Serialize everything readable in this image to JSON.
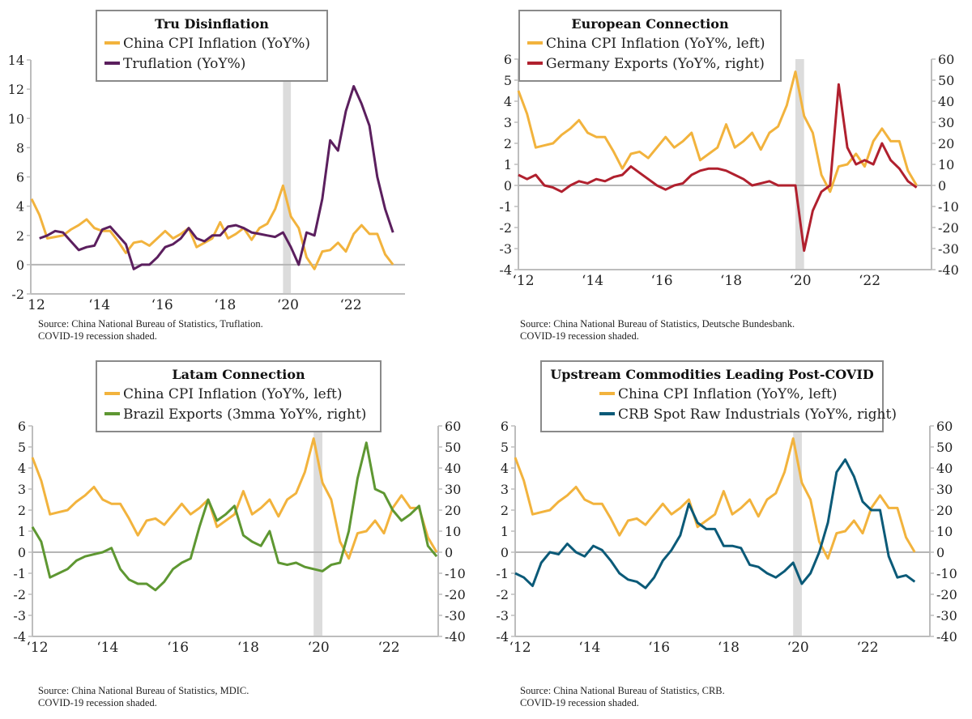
{
  "chart_data": [
    {
      "type": "line",
      "title": "Tru Disinflation",
      "x_tick_labels": [
        "12",
        "‘14",
        "‘16",
        "‘18",
        "‘20",
        "‘22"
      ],
      "x_tick_years": [
        2012,
        2014,
        2016,
        2018,
        2020,
        2022
      ],
      "left_axis": {
        "range": [
          -2,
          14
        ],
        "ticks": [
          -2,
          0,
          2,
          4,
          6,
          8,
          10,
          12,
          14
        ]
      },
      "shaded_region": [
        "2020-01",
        "2020-04"
      ],
      "source": "Source: China National Bureau of Statistics, Truflation.",
      "note": "COVID-19 recession shaded.",
      "x": [
        "2012-01",
        "2012-04",
        "2012-07",
        "2012-10",
        "2013-01",
        "2013-04",
        "2013-07",
        "2013-10",
        "2014-01",
        "2014-04",
        "2014-07",
        "2014-10",
        "2015-01",
        "2015-04",
        "2015-07",
        "2015-10",
        "2016-01",
        "2016-04",
        "2016-07",
        "2016-10",
        "2017-01",
        "2017-04",
        "2017-07",
        "2017-10",
        "2018-01",
        "2018-04",
        "2018-07",
        "2018-10",
        "2019-01",
        "2019-04",
        "2019-07",
        "2019-10",
        "2020-01",
        "2020-04",
        "2020-07",
        "2020-10",
        "2021-01",
        "2021-04",
        "2021-07",
        "2021-10",
        "2022-01",
        "2022-04",
        "2022-07",
        "2022-10",
        "2023-01",
        "2023-04",
        "2023-07"
      ],
      "series": [
        {
          "name": "China CPI Inflation (YoY%)",
          "axis": "left",
          "color": "#F2B33D",
          "values": [
            4.5,
            3.4,
            1.8,
            1.9,
            2.0,
            2.4,
            2.7,
            3.1,
            2.5,
            2.3,
            2.3,
            1.6,
            0.8,
            1.5,
            1.6,
            1.3,
            1.8,
            2.3,
            1.8,
            2.1,
            2.5,
            1.2,
            1.5,
            1.8,
            2.9,
            1.8,
            2.1,
            2.5,
            1.7,
            2.5,
            2.8,
            3.8,
            5.4,
            3.3,
            2.5,
            0.5,
            -0.3,
            0.9,
            1.0,
            1.5,
            0.9,
            2.1,
            2.7,
            2.1,
            2.1,
            0.7,
            0.0
          ]
        },
        {
          "name": "Truflation (YoY%)",
          "axis": "left",
          "color": "#5B1F5E",
          "values": [
            null,
            1.8,
            2.0,
            2.3,
            2.2,
            1.6,
            1.0,
            1.2,
            1.3,
            2.4,
            2.6,
            2.0,
            1.4,
            -0.3,
            0.0,
            0.0,
            0.5,
            1.2,
            1.4,
            1.8,
            2.5,
            1.8,
            1.6,
            2.0,
            2.0,
            2.6,
            2.7,
            2.5,
            2.2,
            2.1,
            2.0,
            1.9,
            2.2,
            1.2,
            0.0,
            2.2,
            2.0,
            4.5,
            8.5,
            7.8,
            10.5,
            12.2,
            11.0,
            9.5,
            6.0,
            3.8,
            2.2
          ]
        }
      ]
    },
    {
      "type": "line",
      "title": "European Connection",
      "x_tick_labels": [
        "‘12",
        "‘14",
        "‘16",
        "‘18",
        "‘20",
        "‘22"
      ],
      "x_tick_years": [
        2012,
        2014,
        2016,
        2018,
        2020,
        2022
      ],
      "left_axis": {
        "range": [
          -4,
          6
        ],
        "ticks": [
          -4,
          -3,
          -2,
          -1,
          0,
          1,
          2,
          3,
          4,
          5,
          6
        ]
      },
      "right_axis": {
        "range": [
          -40,
          60
        ],
        "ticks": [
          -40,
          -30,
          -20,
          -10,
          0,
          10,
          20,
          30,
          40,
          50,
          60
        ]
      },
      "shaded_region": [
        "2020-01",
        "2020-04"
      ],
      "source": "Source: China National Bureau of Statistics, Deutsche Bundesbank.",
      "note": "COVID-19 recession shaded.",
      "x": [
        "2012-01",
        "2012-04",
        "2012-07",
        "2012-10",
        "2013-01",
        "2013-04",
        "2013-07",
        "2013-10",
        "2014-01",
        "2014-04",
        "2014-07",
        "2014-10",
        "2015-01",
        "2015-04",
        "2015-07",
        "2015-10",
        "2016-01",
        "2016-04",
        "2016-07",
        "2016-10",
        "2017-01",
        "2017-04",
        "2017-07",
        "2017-10",
        "2018-01",
        "2018-04",
        "2018-07",
        "2018-10",
        "2019-01",
        "2019-04",
        "2019-07",
        "2019-10",
        "2020-01",
        "2020-04",
        "2020-07",
        "2020-10",
        "2021-01",
        "2021-04",
        "2021-07",
        "2021-10",
        "2022-01",
        "2022-04",
        "2022-07",
        "2022-10",
        "2023-01",
        "2023-04",
        "2023-07"
      ],
      "series": [
        {
          "name": "China CPI Inflation (YoY%, left)",
          "axis": "left",
          "color": "#F2B33D",
          "values": [
            4.5,
            3.4,
            1.8,
            1.9,
            2.0,
            2.4,
            2.7,
            3.1,
            2.5,
            2.3,
            2.3,
            1.6,
            0.8,
            1.5,
            1.6,
            1.3,
            1.8,
            2.3,
            1.8,
            2.1,
            2.5,
            1.2,
            1.5,
            1.8,
            2.9,
            1.8,
            2.1,
            2.5,
            1.7,
            2.5,
            2.8,
            3.8,
            5.4,
            3.3,
            2.5,
            0.5,
            -0.3,
            0.9,
            1.0,
            1.5,
            0.9,
            2.1,
            2.7,
            2.1,
            2.1,
            0.7,
            0.0
          ]
        },
        {
          "name": "Germany Exports (YoY%, right)",
          "axis": "right",
          "color": "#B0202E",
          "values": [
            5,
            3,
            5,
            0,
            -1,
            -3,
            0,
            2,
            1,
            3,
            2,
            4,
            5,
            9,
            6,
            3,
            0,
            -2,
            0,
            1,
            5,
            7,
            8,
            8,
            7,
            5,
            3,
            0,
            1,
            2,
            0,
            0,
            0,
            -31,
            -12,
            -3,
            0,
            48,
            18,
            10,
            12,
            10,
            20,
            12,
            8,
            2,
            -1
          ]
        }
      ]
    },
    {
      "type": "line",
      "title": "Latam Connection",
      "x_tick_labels": [
        "‘12",
        "‘14",
        "‘16",
        "‘18",
        "‘20",
        "‘22"
      ],
      "x_tick_years": [
        2012,
        2014,
        2016,
        2018,
        2020,
        2022
      ],
      "left_axis": {
        "range": [
          -4,
          6
        ],
        "ticks": [
          -4,
          -3,
          -2,
          -1,
          0,
          1,
          2,
          3,
          4,
          5,
          6
        ]
      },
      "right_axis": {
        "range": [
          -40,
          60
        ],
        "ticks": [
          -40,
          -30,
          -20,
          -10,
          0,
          10,
          20,
          30,
          40,
          50,
          60
        ]
      },
      "shaded_region": [
        "2020-01",
        "2020-04"
      ],
      "source": "Source: China National Bureau of Statistics, MDIC.",
      "note": "COVID-19 recession shaded.",
      "x": [
        "2012-01",
        "2012-04",
        "2012-07",
        "2012-10",
        "2013-01",
        "2013-04",
        "2013-07",
        "2013-10",
        "2014-01",
        "2014-04",
        "2014-07",
        "2014-10",
        "2015-01",
        "2015-04",
        "2015-07",
        "2015-10",
        "2016-01",
        "2016-04",
        "2016-07",
        "2016-10",
        "2017-01",
        "2017-04",
        "2017-07",
        "2017-10",
        "2018-01",
        "2018-04",
        "2018-07",
        "2018-10",
        "2019-01",
        "2019-04",
        "2019-07",
        "2019-10",
        "2020-01",
        "2020-04",
        "2020-07",
        "2020-10",
        "2021-01",
        "2021-04",
        "2021-07",
        "2021-10",
        "2022-01",
        "2022-04",
        "2022-07",
        "2022-10",
        "2023-01",
        "2023-04",
        "2023-07"
      ],
      "series": [
        {
          "name": "China CPI Inflation (YoY%, left)",
          "axis": "left",
          "color": "#F2B33D",
          "values": [
            4.5,
            3.4,
            1.8,
            1.9,
            2.0,
            2.4,
            2.7,
            3.1,
            2.5,
            2.3,
            2.3,
            1.6,
            0.8,
            1.5,
            1.6,
            1.3,
            1.8,
            2.3,
            1.8,
            2.1,
            2.5,
            1.2,
            1.5,
            1.8,
            2.9,
            1.8,
            2.1,
            2.5,
            1.7,
            2.5,
            2.8,
            3.8,
            5.4,
            3.3,
            2.5,
            0.5,
            -0.3,
            0.9,
            1.0,
            1.5,
            0.9,
            2.1,
            2.7,
            2.1,
            2.1,
            0.7,
            0.0
          ]
        },
        {
          "name": "Brazil Exports (3mma YoY%, right)",
          "axis": "right",
          "color": "#5E9732",
          "values": [
            12,
            5,
            -12,
            -10,
            -8,
            -4,
            -2,
            -1,
            0,
            2,
            -8,
            -13,
            -15,
            -15,
            -18,
            -14,
            -8,
            -5,
            -3,
            12,
            25,
            15,
            18,
            22,
            8,
            5,
            3,
            10,
            -5,
            -6,
            -5,
            -7,
            -8,
            -9,
            -6,
            -5,
            10,
            35,
            52,
            30,
            28,
            20,
            15,
            18,
            22,
            3,
            -2
          ]
        }
      ]
    },
    {
      "type": "line",
      "title": "Upstream Commodities Leading Post-COVID",
      "x_tick_labels": [
        "‘12",
        "‘14",
        "‘16",
        "‘18",
        "‘20",
        "‘22"
      ],
      "x_tick_years": [
        2012,
        2014,
        2016,
        2018,
        2020,
        2022
      ],
      "left_axis": {
        "range": [
          -4,
          6
        ],
        "ticks": [
          -4,
          -3,
          -2,
          -1,
          0,
          1,
          2,
          3,
          4,
          5,
          6
        ]
      },
      "right_axis": {
        "range": [
          -40,
          60
        ],
        "ticks": [
          -40,
          -30,
          -20,
          -10,
          0,
          10,
          20,
          30,
          40,
          50,
          60
        ]
      },
      "shaded_region": [
        "2020-01",
        "2020-04"
      ],
      "source": "Source: China National Bureau of Statistics, CRB.",
      "note": "COVID-19 recession shaded.",
      "x": [
        "2012-01",
        "2012-04",
        "2012-07",
        "2012-10",
        "2013-01",
        "2013-04",
        "2013-07",
        "2013-10",
        "2014-01",
        "2014-04",
        "2014-07",
        "2014-10",
        "2015-01",
        "2015-04",
        "2015-07",
        "2015-10",
        "2016-01",
        "2016-04",
        "2016-07",
        "2016-10",
        "2017-01",
        "2017-04",
        "2017-07",
        "2017-10",
        "2018-01",
        "2018-04",
        "2018-07",
        "2018-10",
        "2019-01",
        "2019-04",
        "2019-07",
        "2019-10",
        "2020-01",
        "2020-04",
        "2020-07",
        "2020-10",
        "2021-01",
        "2021-04",
        "2021-07",
        "2021-10",
        "2022-01",
        "2022-04",
        "2022-07",
        "2022-10",
        "2023-01",
        "2023-04",
        "2023-07"
      ],
      "series": [
        {
          "name": "China CPI Inflation (YoY%, left)",
          "axis": "left",
          "color": "#F2B33D",
          "values": [
            4.5,
            3.4,
            1.8,
            1.9,
            2.0,
            2.4,
            2.7,
            3.1,
            2.5,
            2.3,
            2.3,
            1.6,
            0.8,
            1.5,
            1.6,
            1.3,
            1.8,
            2.3,
            1.8,
            2.1,
            2.5,
            1.2,
            1.5,
            1.8,
            2.9,
            1.8,
            2.1,
            2.5,
            1.7,
            2.5,
            2.8,
            3.8,
            5.4,
            3.3,
            2.5,
            0.5,
            -0.3,
            0.9,
            1.0,
            1.5,
            0.9,
            2.1,
            2.7,
            2.1,
            2.1,
            0.7,
            0.0
          ]
        },
        {
          "name": "CRB Spot Raw Industrials (YoY%, right)",
          "axis": "right",
          "color": "#0B5A78",
          "values": [
            -10,
            -12,
            -16,
            -5,
            0,
            -1,
            4,
            0,
            -2,
            3,
            1,
            -4,
            -10,
            -13,
            -14,
            -17,
            -12,
            -4,
            1,
            8,
            23,
            14,
            11,
            11,
            3,
            3,
            2,
            -6,
            -7,
            -10,
            -12,
            -9,
            -5,
            -15,
            -10,
            0,
            14,
            38,
            44,
            36,
            24,
            20,
            20,
            -2,
            -12,
            -11,
            -14
          ]
        }
      ]
    }
  ]
}
